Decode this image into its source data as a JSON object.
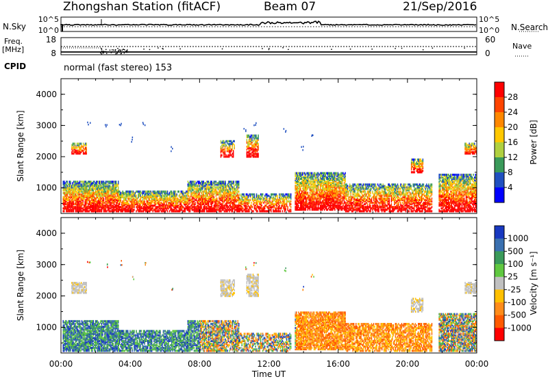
{
  "header": {
    "station_title": "Zhongshan Station (fitACF)",
    "beam": "Beam 07",
    "date": "21/Sep/2016"
  },
  "noise_panel": {
    "left_label": "N.Sky",
    "right_label": "N.Search",
    "left_ticks": [
      "10^5",
      "10^0"
    ],
    "right_ticks": [
      "10^5",
      "10^0"
    ]
  },
  "freq_panel": {
    "left_label_line1": "Freq.",
    "left_label_line2": "[MHz]",
    "left_ticks": [
      "18",
      "8"
    ],
    "right_label": "Nave",
    "right_ticks": [
      "60",
      "0"
    ]
  },
  "cpid": {
    "label": "CPID",
    "text": "normal (fast stereo) 153"
  },
  "chart_data": [
    {
      "type": "heatmap",
      "title": "",
      "ylabel": "Slant Range [km]",
      "xlabel": "",
      "y_ticks": [
        "4000",
        "3000",
        "2000",
        "1000"
      ],
      "ylim": [
        180,
        4500
      ],
      "colorbar": {
        "label": "Power [dB]",
        "ticks": [
          "28",
          "24",
          "20",
          "16",
          "12",
          "8",
          "4"
        ],
        "colors": [
          "#ff0000",
          "#ff4400",
          "#ff8800",
          "#ffc800",
          "#b0d040",
          "#3a9a5a",
          "#2050c0",
          "#0000ff"
        ]
      }
    },
    {
      "type": "heatmap",
      "title": "",
      "ylabel": "Slant Range [km]",
      "xlabel": "Time UT",
      "y_ticks": [
        "4000",
        "3000",
        "2000",
        "1000"
      ],
      "ylim": [
        180,
        4500
      ],
      "x_ticks": [
        "00:00",
        "04:00",
        "08:00",
        "12:00",
        "16:00",
        "20:00",
        "00:00"
      ],
      "colorbar": {
        "label": "Velocity [m s⁻¹]",
        "ticks": [
          "1000",
          "500",
          "100",
          "25",
          "-25",
          "-100",
          "-500",
          "-1000"
        ],
        "colors": [
          "#1838c0",
          "#3a70b0",
          "#3a9a5a",
          "#60c840",
          "#c0c0c0",
          "#ffc000",
          "#ff8c1a",
          "#ff5a00",
          "#ff0000"
        ]
      }
    }
  ]
}
